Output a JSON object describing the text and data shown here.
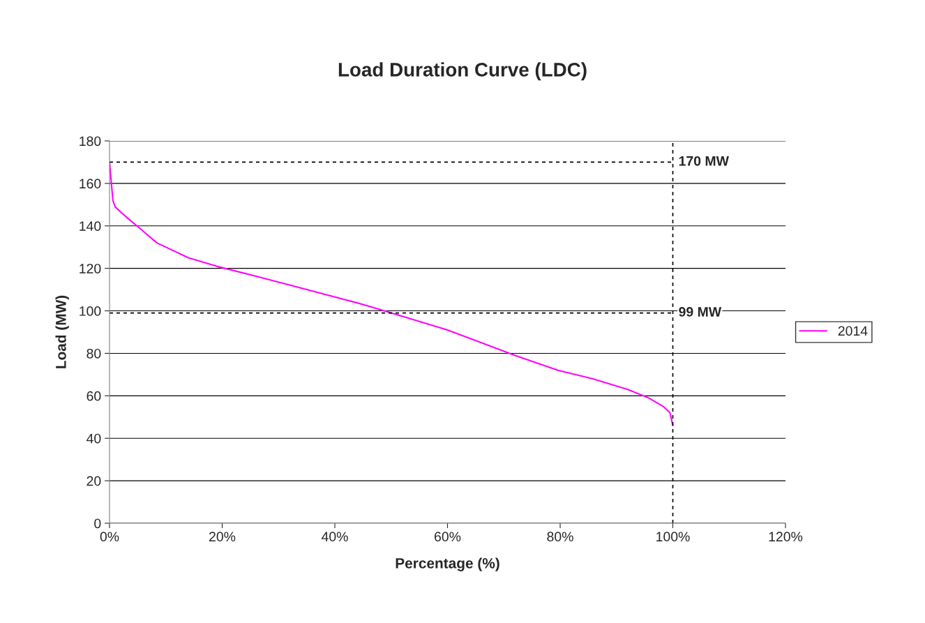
{
  "chart_data": {
    "type": "line",
    "title": "Load Duration Curve (LDC)",
    "xlabel": "Percentage (%)",
    "ylabel": "Load (MW)",
    "series": [
      {
        "name": "2014",
        "color": "#ff00ff",
        "x": [
          0,
          0.6,
          1,
          2.2,
          3.5,
          5.3,
          8.4,
          14,
          19,
          26.4,
          35,
          45,
          50,
          60,
          67,
          72,
          79.6,
          85.8,
          92,
          95.7,
          98.3,
          99.5,
          100
        ],
        "values": [
          170,
          152,
          149,
          146,
          143,
          139,
          132,
          125,
          121,
          116,
          110,
          103,
          99,
          91,
          84,
          79,
          72,
          68,
          63,
          59,
          55,
          52,
          46
        ]
      }
    ],
    "xlim": [
      0,
      120
    ],
    "xticks": [
      {
        "value": 0,
        "label": "0%"
      },
      {
        "value": 20,
        "label": "20%"
      },
      {
        "value": 40,
        "label": "40%"
      },
      {
        "value": 60,
        "label": "60%"
      },
      {
        "value": 80,
        "label": "80%"
      },
      {
        "value": 100,
        "label": "100%"
      },
      {
        "value": 120,
        "label": "120%"
      }
    ],
    "ylim": [
      0,
      180
    ],
    "yticks": [
      0,
      20,
      40,
      60,
      80,
      100,
      120,
      140,
      160,
      180
    ],
    "ref_lines": [
      {
        "axis": "y",
        "value": 170,
        "label": "170 MW",
        "color": "#000000",
        "line_style": "dashed"
      },
      {
        "axis": "y",
        "value": 99,
        "label": "99 MW",
        "color": "#000000",
        "line_style": "dashed"
      },
      {
        "axis": "x",
        "value": 100,
        "color": "#000000",
        "line_style": "dashed"
      }
    ],
    "grid": "y",
    "legend": "right",
    "marker": "none",
    "line_style": "solid"
  }
}
